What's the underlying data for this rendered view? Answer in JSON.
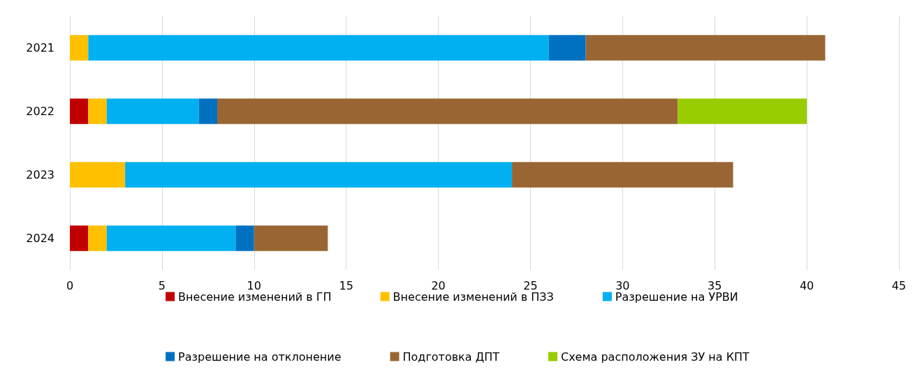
{
  "chart_data": {
    "type": "bar",
    "orientation": "horizontal",
    "stacked": true,
    "categories": [
      "2021",
      "2022",
      "2023",
      "2024"
    ],
    "series": [
      {
        "name": "Внесение изменений в ГП",
        "color": "#c00000",
        "values": [
          0,
          1,
          0,
          1
        ]
      },
      {
        "name": "Внесение изменений в ПЗЗ",
        "color": "#ffc000",
        "values": [
          1,
          1,
          3,
          1
        ]
      },
      {
        "name": "Разрешение на УРВИ",
        "color": "#00b0f0",
        "values": [
          25,
          5,
          21,
          7
        ]
      },
      {
        "name": "Разрешение на отклонение",
        "color": "#0070c0",
        "values": [
          2,
          1,
          0,
          1
        ]
      },
      {
        "name": "Подготовка ДПТ",
        "color": "#996633",
        "values": [
          13,
          25,
          12,
          4
        ]
      },
      {
        "name": "Схема расположения ЗУ на КПТ",
        "color": "#99cc00",
        "values": [
          0,
          7,
          0,
          0
        ]
      }
    ],
    "xlim": [
      0,
      45
    ],
    "xticks": [
      0,
      5,
      10,
      15,
      20,
      25,
      30,
      35,
      40,
      45
    ],
    "grid": "x",
    "legend": "bottom"
  }
}
